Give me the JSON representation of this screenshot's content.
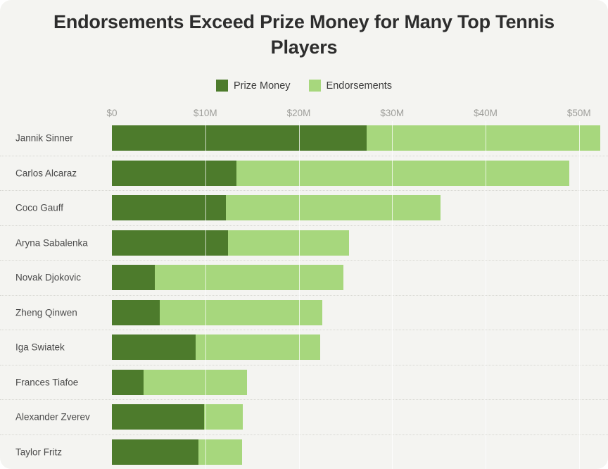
{
  "card": {
    "background_color": "#f4f4f1"
  },
  "chart_data": {
    "type": "bar",
    "orientation": "horizontal",
    "stacked": true,
    "title": "Endorsements Exceed Prize Money for Many Top Tennis Players",
    "unit": "USD millions",
    "legend_position": "top",
    "grid": "vertical",
    "categories": [
      "Jannik Sinner",
      "Carlos Alcaraz",
      "Coco Gauff",
      "Aryna Sabalenka",
      "Novak Djokovic",
      "Zheng Qinwen",
      "Iga Swiatek",
      "Frances Tiafoe",
      "Alexander Zverev",
      "Taylor Fritz"
    ],
    "series": [
      {
        "name": "Prize Money",
        "color": "#4d7b2c",
        "values": [
          27.3,
          13.3,
          12.2,
          12.4,
          4.6,
          5.1,
          9.0,
          3.4,
          9.9,
          9.3
        ]
      },
      {
        "name": "Endorsements",
        "color": "#a7d77d",
        "values": [
          25.0,
          35.7,
          23.0,
          13.0,
          20.2,
          17.4,
          13.3,
          11.1,
          4.1,
          4.6
        ]
      }
    ],
    "totals": [
      52.3,
      49.0,
      35.2,
      25.4,
      24.8,
      22.5,
      22.3,
      14.5,
      14.0,
      13.9
    ],
    "x_axis": {
      "tick_labels": [
        "$0",
        "$10M",
        "$20M",
        "$30M",
        "$40M",
        "$50M"
      ],
      "tick_values": [
        0,
        10,
        20,
        30,
        40,
        50
      ],
      "min": 0,
      "max": 53.1
    }
  }
}
